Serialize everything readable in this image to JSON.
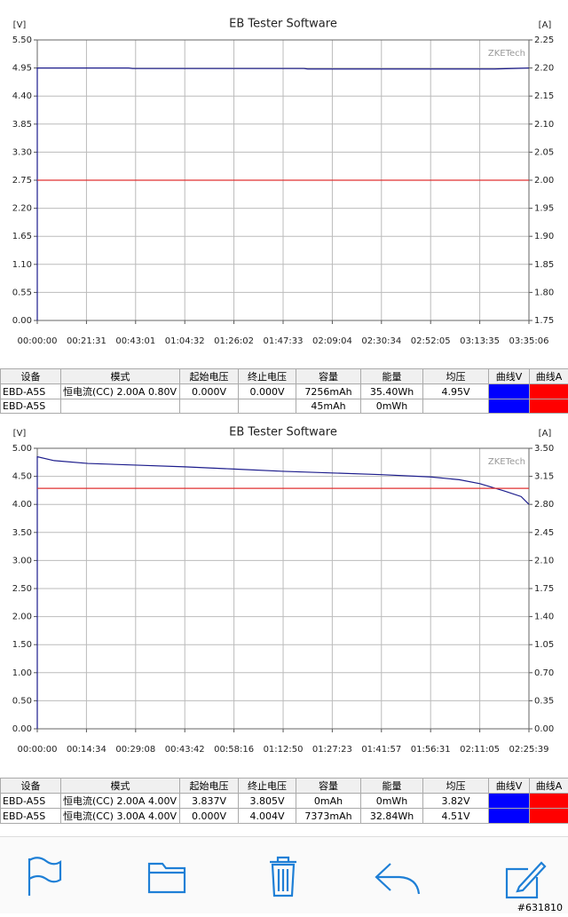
{
  "chart_data": [
    {
      "type": "line",
      "title": "EB Tester Software",
      "ylabel": "[V]",
      "y2label": "[A]",
      "watermark": "ZKETech",
      "grid": true,
      "xlim": [
        0,
        12906
      ],
      "xticks": [
        {
          "value": 0,
          "label": "00:00:00"
        },
        {
          "value": 1291,
          "label": "00:21:31"
        },
        {
          "value": 2581,
          "label": "00:43:01"
        },
        {
          "value": 3872,
          "label": "01:04:32"
        },
        {
          "value": 5162,
          "label": "01:26:02"
        },
        {
          "value": 6453,
          "label": "01:47:33"
        },
        {
          "value": 7744,
          "label": "02:09:04"
        },
        {
          "value": 9034,
          "label": "02:30:34"
        },
        {
          "value": 10325,
          "label": "02:52:05"
        },
        {
          "value": 11615,
          "label": "03:13:35"
        },
        {
          "value": 12906,
          "label": "03:35:06"
        }
      ],
      "ylim": [
        0,
        5.5
      ],
      "yticks": [
        {
          "value": 0,
          "label": "0.00"
        },
        0.55,
        {
          "value": 1.1,
          "label": "1.10"
        },
        1.65,
        {
          "value": 2.2,
          "label": "2.20"
        },
        2.75,
        {
          "value": 3.3,
          "label": "3.30"
        },
        3.85,
        {
          "value": 4.4,
          "label": "4.40"
        },
        4.95,
        {
          "value": 5.5,
          "label": "5.50"
        }
      ],
      "y2lim": [
        1.75,
        2.25
      ],
      "y2ticks": [
        1.75,
        {
          "value": 1.8,
          "label": "1.80"
        },
        1.85,
        {
          "value": 1.9,
          "label": "1.90"
        },
        1.95,
        {
          "value": 2.0,
          "label": "2.00"
        },
        2.05,
        {
          "value": 2.1,
          "label": "2.10"
        },
        2.15,
        {
          "value": 2.2,
          "label": "2.20"
        },
        2.25
      ],
      "series": [
        {
          "name": "V",
          "color": "#1c1c8c",
          "x": [
            0,
            0,
            2400,
            2500,
            7000,
            7100,
            12000,
            12906
          ],
          "values": [
            0,
            4.95,
            4.95,
            4.94,
            4.94,
            4.93,
            4.93,
            4.95
          ]
        },
        {
          "name": "A",
          "color": "#e03030",
          "axis": "y2",
          "x": [
            0,
            12906
          ],
          "values": [
            2.0,
            2.0
          ]
        }
      ]
    },
    {
      "type": "line",
      "title": "EB Tester Software",
      "ylabel": "[V]",
      "y2label": "[A]",
      "watermark": "ZKETech",
      "grid": true,
      "xlim": [
        0,
        8739
      ],
      "xticks": [
        {
          "value": 0,
          "label": "00:00:00"
        },
        {
          "value": 874,
          "label": "00:14:34"
        },
        {
          "value": 1748,
          "label": "00:29:08"
        },
        {
          "value": 2622,
          "label": "00:43:42"
        },
        {
          "value": 3496,
          "label": "00:58:16"
        },
        {
          "value": 4370,
          "label": "01:12:50"
        },
        {
          "value": 5243,
          "label": "01:27:23"
        },
        {
          "value": 6117,
          "label": "01:41:57"
        },
        {
          "value": 6991,
          "label": "01:56:31"
        },
        {
          "value": 7865,
          "label": "02:11:05"
        },
        {
          "value": 8739,
          "label": "02:25:39"
        }
      ],
      "ylim": [
        0,
        5
      ],
      "yticks": [
        {
          "value": 0,
          "label": "0.00"
        },
        {
          "value": 0.5,
          "label": "0.50"
        },
        {
          "value": 1,
          "label": "1.00"
        },
        {
          "value": 1.5,
          "label": "1.50"
        },
        {
          "value": 2,
          "label": "2.00"
        },
        {
          "value": 2.5,
          "label": "2.50"
        },
        {
          "value": 3,
          "label": "3.00"
        },
        {
          "value": 3.5,
          "label": "3.50"
        },
        {
          "value": 4,
          "label": "4.00"
        },
        {
          "value": 4.5,
          "label": "4.50"
        },
        {
          "value": 5,
          "label": "5.00"
        }
      ],
      "y2lim": [
        0,
        3.5
      ],
      "y2ticks": [
        {
          "value": 0,
          "label": "0.00"
        },
        0.35,
        {
          "value": 0.7,
          "label": "0.70"
        },
        1.05,
        {
          "value": 1.4,
          "label": "1.40"
        },
        1.75,
        {
          "value": 2.1,
          "label": "2.10"
        },
        2.45,
        {
          "value": 2.8,
          "label": "2.80"
        },
        3.15,
        {
          "value": 3.5,
          "label": "3.50"
        }
      ],
      "series": [
        {
          "name": "V",
          "color": "#1c1c8c",
          "x": [
            0,
            0,
            300,
            900,
            1748,
            2622,
            3496,
            4370,
            5243,
            6117,
            6991,
            7500,
            7865,
            8300,
            8600,
            8739
          ],
          "values": [
            0,
            4.85,
            4.78,
            4.73,
            4.7,
            4.67,
            4.63,
            4.59,
            4.56,
            4.53,
            4.49,
            4.44,
            4.37,
            4.24,
            4.14,
            4.0
          ]
        },
        {
          "name": "A",
          "color": "#e03030",
          "axis": "y2",
          "x": [
            0,
            8739
          ],
          "values": [
            3.0,
            3.0
          ]
        }
      ]
    }
  ],
  "tables": [
    {
      "header": [
        "设备",
        "模式",
        "起始电压",
        "终止电压",
        "容量",
        "能量",
        "均压",
        "曲线V",
        "曲线A"
      ],
      "curve_colors": [
        "#0000ff",
        "#ff0000"
      ],
      "rows": [
        [
          "EBD-A5S",
          "恒电流(CC) 2.00A 0.80V",
          "0.000V",
          "0.000V",
          "7256mAh",
          "35.40Wh",
          "4.95V"
        ],
        [
          "EBD-A5S",
          null,
          null,
          null,
          "45mAh",
          "0mWh",
          null
        ]
      ]
    },
    {
      "header": [
        "设备",
        "模式",
        "起始电压",
        "终止电压",
        "容量",
        "能量",
        "均压",
        "曲线V",
        "曲线A"
      ],
      "curve_colors": [
        "#0000ff",
        "#ff0000"
      ],
      "rows": [
        [
          "EBD-A5S",
          "恒电流(CC) 2.00A 4.00V",
          "3.837V",
          "3.805V",
          "0mAh",
          "0mWh",
          "3.82V"
        ],
        [
          "EBD-A5S",
          "恒电流(CC) 3.00A 4.00V",
          "0.000V",
          "4.004V",
          "7373mAh",
          "32.84Wh",
          "4.51V"
        ]
      ]
    }
  ],
  "footer": {
    "watermark": "#631810"
  }
}
